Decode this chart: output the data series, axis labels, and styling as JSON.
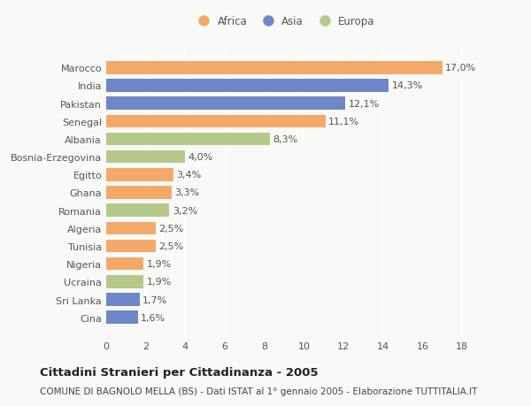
{
  "countries": [
    "Marocco",
    "India",
    "Pakistan",
    "Senegal",
    "Albania",
    "Bosnia-Erzegovina",
    "Egitto",
    "Ghana",
    "Romania",
    "Algeria",
    "Tunisia",
    "Nigeria",
    "Ucraina",
    "Sri Lanka",
    "Cina"
  ],
  "values": [
    17.0,
    14.3,
    12.1,
    11.1,
    8.3,
    4.0,
    3.4,
    3.3,
    3.2,
    2.5,
    2.5,
    1.9,
    1.9,
    1.7,
    1.6
  ],
  "labels": [
    "17,0%",
    "14,3%",
    "12,1%",
    "11,1%",
    "8,3%",
    "4,0%",
    "3,4%",
    "3,3%",
    "3,2%",
    "2,5%",
    "2,5%",
    "1,9%",
    "1,9%",
    "1,7%",
    "1,6%"
  ],
  "continents": [
    "Africa",
    "Asia",
    "Asia",
    "Africa",
    "Europa",
    "Europa",
    "Africa",
    "Africa",
    "Europa",
    "Africa",
    "Africa",
    "Africa",
    "Europa",
    "Asia",
    "Asia"
  ],
  "colors": {
    "Africa": "#F4A96A",
    "Asia": "#6E87C8",
    "Europa": "#B5C98A"
  },
  "xlim": [
    0,
    18
  ],
  "xticks": [
    0,
    2,
    4,
    6,
    8,
    10,
    12,
    14,
    16,
    18
  ],
  "title": "Cittadini Stranieri per Cittadinanza - 2005",
  "subtitle": "COMUNE DI BAGNOLO MELLA (BS) - Dati ISTAT al 1° gennaio 2005 - Elaborazione TUTTITALIA.IT",
  "background_color": "#f9f9f7",
  "plot_bg_color": "#f9f9f7",
  "grid_color": "#ffffff",
  "bar_height": 0.72,
  "label_fontsize": 8.0,
  "ytick_fontsize": 8.0,
  "xtick_fontsize": 8.0,
  "title_fontsize": 9.5,
  "subtitle_fontsize": 7.5,
  "legend_fontsize": 8.5,
  "text_color": "#555555",
  "title_color": "#222222",
  "subtitle_color": "#444444"
}
